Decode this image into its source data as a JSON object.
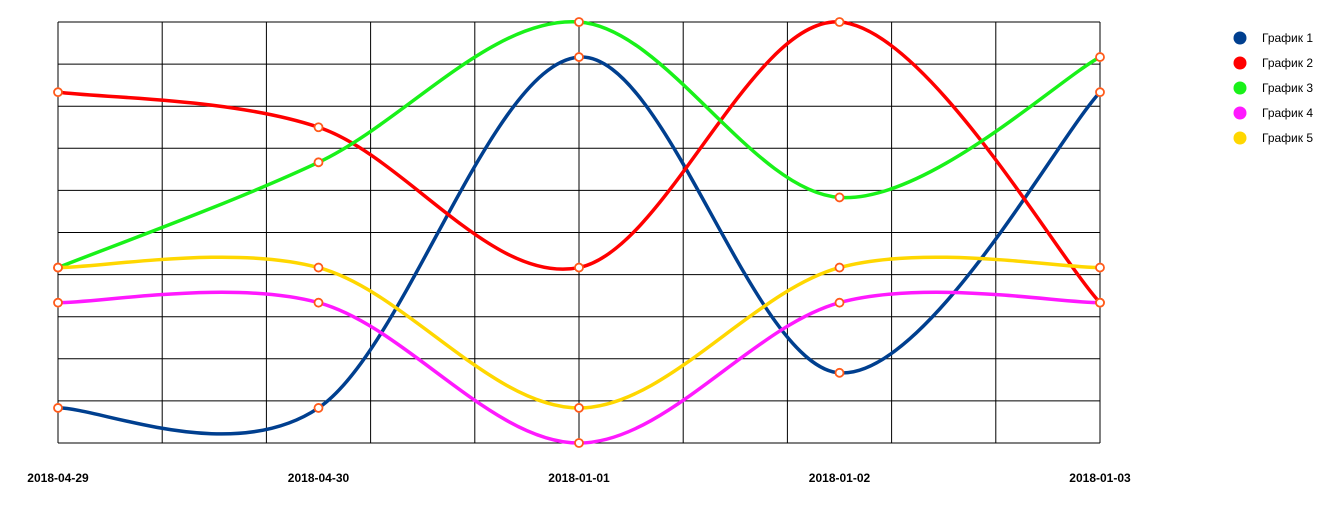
{
  "chart_data": {
    "type": "line",
    "smooth": true,
    "categories": [
      "2018-04-29",
      "2018-04-30",
      "2018-01-01",
      "2018-01-02",
      "2018-01-03"
    ],
    "ylim": [
      0,
      12
    ],
    "grid": true,
    "legend_position": "top-right",
    "series": [
      {
        "name": "График 1",
        "color": "#003f8f",
        "values": [
          1,
          1,
          11,
          2,
          10
        ]
      },
      {
        "name": "График 2",
        "color": "#ff0000",
        "values": [
          10,
          9,
          5,
          12,
          4
        ]
      },
      {
        "name": "График 3",
        "color": "#19f119",
        "values": [
          5,
          8,
          12,
          7,
          11
        ]
      },
      {
        "name": "График 4",
        "color": "#ff19ff",
        "values": [
          4,
          4,
          0,
          4,
          4
        ]
      },
      {
        "name": "График 5",
        "color": "#ffd700",
        "values": [
          5,
          5,
          1,
          5,
          5
        ]
      }
    ],
    "marker": {
      "fill": "#ffffff",
      "stroke": "#ff5a1a"
    }
  }
}
